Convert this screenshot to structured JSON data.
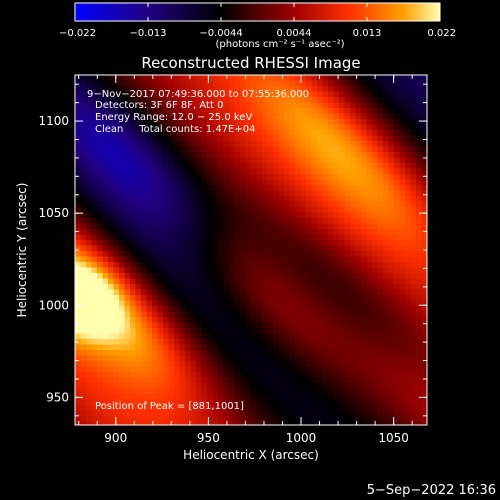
{
  "chart_data": {
    "type": "heatmap",
    "title": "Reconstructed RHESSI Image",
    "xlabel": "Heliocentric X (arcsec)",
    "ylabel": "Heliocentric Y (arcsec)",
    "xlim": [
      878,
      1068
    ],
    "ylim": [
      935,
      1125
    ],
    "x_ticks": [
      "900",
      "950",
      "1000",
      "1050"
    ],
    "y_ticks": [
      "950",
      "1000",
      "1050",
      "1100"
    ],
    "grid": false,
    "colorbar": {
      "min": -0.022,
      "max": 0.022,
      "tick_labels": [
        "−0.022",
        "−0.013",
        "−0.0044",
        "0.0044",
        "0.013",
        "0.022"
      ],
      "units_label": "(photons cm⁻² s⁻¹ asec⁻²)",
      "colormap": [
        "#0000ff",
        "#200080",
        "#000000",
        "#a00000",
        "#ff3000",
        "#ffa000",
        "#ffffb0"
      ]
    },
    "annotations": {
      "time": "9−Nov−2017 07:49:36.000 to 07:55:36.000",
      "detectors": "Detectors: 3F 6F 8F, Att 0",
      "energy": "Energy Range: 12.0 − 25.0 keV",
      "clean": "Clean     Total counts: 1.47E+04",
      "peak": "Position of Peak = [881,1001]"
    },
    "peak": [
      881,
      1001
    ],
    "ridges": [
      {
        "kind": "positive",
        "center": [
          895,
          1000
        ],
        "amplitude": 0.021
      },
      {
        "kind": "positive",
        "center": [
          975,
          1010
        ],
        "amplitude": 0.012
      },
      {
        "kind": "positive",
        "center": [
          1020,
          1090
        ],
        "amplitude": 0.011
      },
      {
        "kind": "positive",
        "center": [
          1060,
          960
        ],
        "amplitude": 0.011
      },
      {
        "kind": "negative",
        "center": [
          905,
          1080
        ],
        "amplitude": -0.012
      },
      {
        "kind": "negative",
        "center": [
          1040,
          990
        ],
        "amplitude": -0.011
      },
      {
        "kind": "negative",
        "center": [
          925,
          965
        ],
        "amplitude": -0.006
      }
    ]
  },
  "footer": {
    "date": "5−Sep−2022 16:36"
  }
}
